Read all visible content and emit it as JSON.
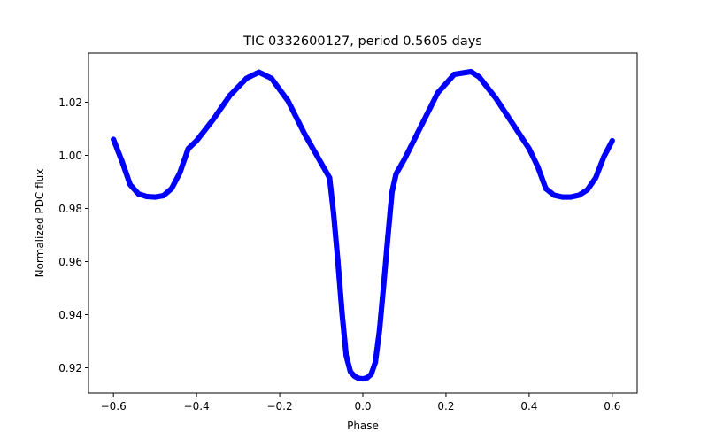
{
  "chart_data": {
    "type": "scatter",
    "title": "TIC 0332600127, period 0.5605 days",
    "xlabel": "Phase",
    "ylabel": "Normalized PDC flux",
    "xlim": [
      -0.66,
      0.66
    ],
    "ylim": [
      0.9105,
      1.0385
    ],
    "xticks": [
      -0.6,
      -0.4,
      -0.2,
      0.0,
      0.2,
      0.4,
      0.6
    ],
    "xtick_labels": [
      "−0.6",
      "−0.4",
      "−0.2",
      "0.0",
      "0.2",
      "0.4",
      "0.6"
    ],
    "yticks": [
      0.92,
      0.94,
      0.96,
      0.98,
      1.0,
      1.02
    ],
    "ytick_labels": [
      "0.92",
      "0.94",
      "0.96",
      "0.98",
      "1.00",
      "1.02"
    ],
    "grid": false,
    "series": [
      {
        "name": "PDC flux",
        "color": "#0000ff",
        "x": [
          -0.6,
          -0.58,
          -0.56,
          -0.54,
          -0.52,
          -0.5,
          -0.48,
          -0.46,
          -0.44,
          -0.42,
          -0.4,
          -0.36,
          -0.32,
          -0.28,
          -0.25,
          -0.22,
          -0.18,
          -0.14,
          -0.1,
          -0.08,
          -0.07,
          -0.06,
          -0.05,
          -0.04,
          -0.03,
          -0.02,
          -0.01,
          0.0,
          0.01,
          0.02,
          0.03,
          0.04,
          0.05,
          0.06,
          0.07,
          0.08,
          0.1,
          0.14,
          0.18,
          0.22,
          0.26,
          0.28,
          0.32,
          0.36,
          0.4,
          0.42,
          0.44,
          0.46,
          0.48,
          0.5,
          0.52,
          0.54,
          0.56,
          0.58,
          0.6
        ],
        "y": [
          1.006,
          0.998,
          0.989,
          0.9855,
          0.9845,
          0.9843,
          0.9848,
          0.9875,
          0.9935,
          1.0025,
          1.0055,
          1.0135,
          1.0225,
          1.029,
          1.0313,
          1.029,
          1.0205,
          1.008,
          0.997,
          0.9915,
          0.9775,
          0.96,
          0.9405,
          0.9245,
          0.9185,
          0.9168,
          0.916,
          0.9158,
          0.9162,
          0.9175,
          0.922,
          0.934,
          0.951,
          0.969,
          0.986,
          0.993,
          0.9985,
          1.011,
          1.0235,
          1.0305,
          1.0315,
          1.0295,
          1.0215,
          1.012,
          1.0025,
          0.996,
          0.9875,
          0.985,
          0.9843,
          0.9843,
          0.985,
          0.987,
          0.9915,
          0.9995,
          1.0055
        ]
      }
    ]
  }
}
